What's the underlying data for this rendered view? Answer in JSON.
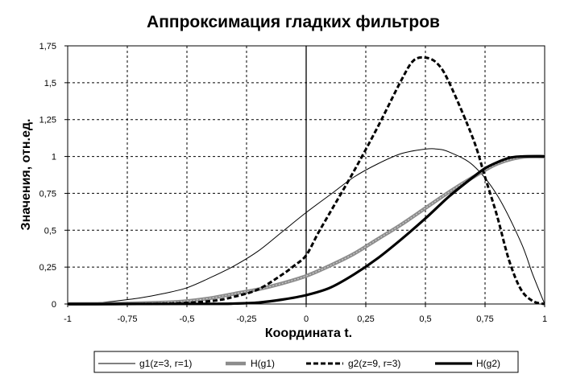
{
  "chart_data": {
    "type": "line",
    "title": "Аппроксимация гладких фильтров",
    "xlabel": "Координата  t.",
    "ylabel": "Значения, отн.ед.",
    "xlim": [
      -1,
      1
    ],
    "ylim": [
      0,
      1.75
    ],
    "x_ticks": [
      "-1",
      "-0,75",
      "-0,5",
      "-0,25",
      "0",
      "0,25",
      "0,5",
      "0,75",
      "1"
    ],
    "y_ticks": [
      "0",
      "0,25",
      "0,5",
      "0,75",
      "1",
      "1,25",
      "1,5",
      "1,75"
    ],
    "grid": true,
    "legend_position": "bottom",
    "series": [
      {
        "name": "g1(z=3, r=1)",
        "style": "thin-solid",
        "color": "#000000",
        "x": [
          -1,
          -0.9,
          -0.8,
          -0.7,
          -0.6,
          -0.5,
          -0.4,
          -0.3,
          -0.2,
          -0.1,
          0,
          0.1,
          0.2,
          0.3,
          0.4,
          0.5,
          0.55,
          0.6,
          0.7,
          0.8,
          0.9,
          0.95,
          1
        ],
        "y": [
          0,
          0.005,
          0.02,
          0.04,
          0.07,
          0.11,
          0.18,
          0.26,
          0.36,
          0.49,
          0.62,
          0.74,
          0.86,
          0.95,
          1.02,
          1.05,
          1.05,
          1.03,
          0.94,
          0.74,
          0.42,
          0.2,
          0
        ]
      },
      {
        "name": "H(g1)",
        "style": "grey-thick",
        "color": "#8c8c8c",
        "x": [
          -1,
          -0.8,
          -0.6,
          -0.5,
          -0.4,
          -0.3,
          -0.2,
          -0.1,
          0,
          0.1,
          0.2,
          0.3,
          0.4,
          0.5,
          0.6,
          0.7,
          0.8,
          0.9,
          1
        ],
        "y": [
          0,
          0.002,
          0.01,
          0.02,
          0.04,
          0.07,
          0.1,
          0.14,
          0.19,
          0.26,
          0.34,
          0.44,
          0.54,
          0.65,
          0.76,
          0.86,
          0.95,
          0.995,
          1
        ]
      },
      {
        "name": "g2(z=9, r=3)",
        "style": "dashed",
        "color": "#000000",
        "x": [
          -1,
          -0.6,
          -0.4,
          -0.3,
          -0.2,
          -0.1,
          -0.05,
          0,
          0.05,
          0.1,
          0.2,
          0.3,
          0.4,
          0.45,
          0.5,
          0.55,
          0.6,
          0.7,
          0.75,
          0.8,
          0.85,
          0.9,
          0.95,
          1
        ],
        "y": [
          0,
          0.002,
          0.02,
          0.05,
          0.1,
          0.2,
          0.26,
          0.33,
          0.48,
          0.62,
          0.9,
          1.2,
          1.52,
          1.65,
          1.67,
          1.63,
          1.5,
          1.12,
          0.86,
          0.6,
          0.3,
          0.1,
          0.02,
          0
        ]
      },
      {
        "name": "H(g2)",
        "style": "thick-solid",
        "color": "#000000",
        "x": [
          -1,
          -0.4,
          -0.3,
          -0.2,
          -0.1,
          0,
          0.1,
          0.2,
          0.3,
          0.4,
          0.5,
          0.6,
          0.7,
          0.75,
          0.8,
          0.85,
          0.9,
          1
        ],
        "y": [
          0,
          0.001,
          0.003,
          0.01,
          0.03,
          0.06,
          0.11,
          0.2,
          0.31,
          0.44,
          0.58,
          0.73,
          0.86,
          0.92,
          0.96,
          0.99,
          1.0,
          1.0
        ]
      }
    ]
  }
}
